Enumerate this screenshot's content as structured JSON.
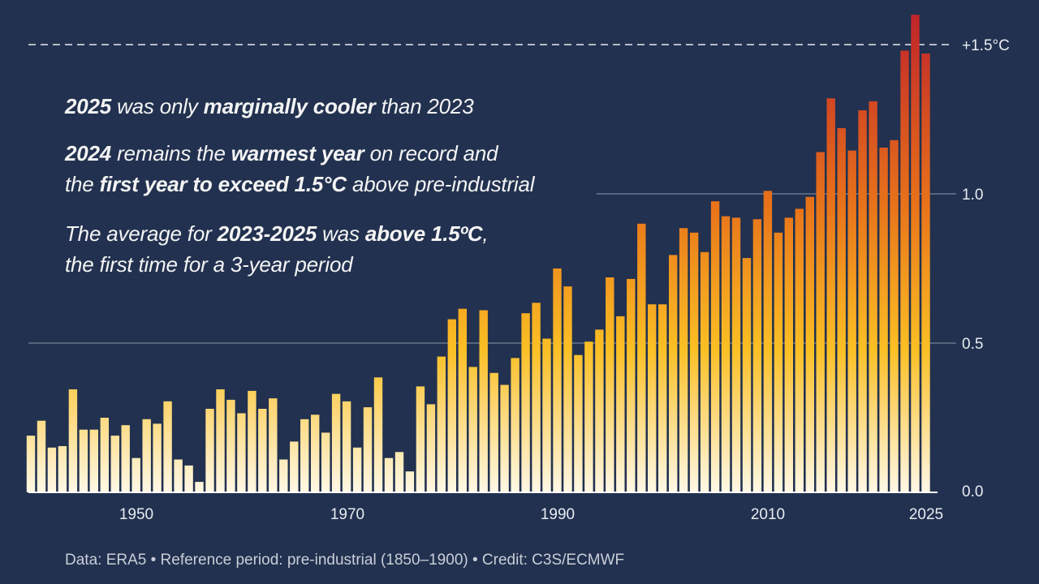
{
  "annotations": {
    "line1": [
      {
        "t": "2025",
        "b": true
      },
      {
        "t": " was only ",
        "b": false
      },
      {
        "t": "marginally cooler",
        "b": true
      },
      {
        "t": " than 2023",
        "b": false
      }
    ],
    "line2": [
      {
        "t": "2024",
        "b": true
      },
      {
        "t": " remains the ",
        "b": false
      },
      {
        "t": "warmest year",
        "b": true
      },
      {
        "t": " on record and",
        "b": false
      }
    ],
    "line3": [
      {
        "t": "the ",
        "b": false
      },
      {
        "t": "first year to exceed 1.5°C",
        "b": true
      },
      {
        "t": " above pre-industrial",
        "b": false
      }
    ],
    "line4": [
      {
        "t": "The average for ",
        "b": false
      },
      {
        "t": "2023-2025",
        "b": true
      },
      {
        "t": " was ",
        "b": false
      },
      {
        "t": "above 1.5ºC",
        "b": true
      },
      {
        "t": ",",
        "b": false
      }
    ],
    "line5": [
      {
        "t": "the first time for a 3-year period",
        "b": false
      }
    ]
  },
  "footer": "Data: ERA5 • Reference period: pre-industrial (1850–1900) • Credit: C3S/ECMWF",
  "chart_data": {
    "type": "bar",
    "title": "",
    "xlabel": "",
    "ylabel": "",
    "ylim": [
      0,
      1.6
    ],
    "grid": true,
    "threshold": {
      "value": 1.5,
      "label": "+1.5°C",
      "style": "dashed"
    },
    "x_ticks": [
      "1950",
      "1970",
      "1990",
      "2010",
      "2025"
    ],
    "y_ticks": [
      "0.0",
      "0.5",
      "1.0"
    ],
    "colors": {
      "low": "#fff8e6",
      "mid": "#fbbf24",
      "high": "#e8731a",
      "peak": "#c0242a",
      "background": "#22314f"
    },
    "years": [
      1940,
      1941,
      1942,
      1943,
      1944,
      1945,
      1946,
      1947,
      1948,
      1949,
      1950,
      1951,
      1952,
      1953,
      1954,
      1955,
      1956,
      1957,
      1958,
      1959,
      1960,
      1961,
      1962,
      1963,
      1964,
      1965,
      1966,
      1967,
      1968,
      1969,
      1970,
      1971,
      1972,
      1973,
      1974,
      1975,
      1976,
      1977,
      1978,
      1979,
      1980,
      1981,
      1982,
      1983,
      1984,
      1985,
      1986,
      1987,
      1988,
      1989,
      1990,
      1991,
      1992,
      1993,
      1994,
      1995,
      1996,
      1997,
      1998,
      1999,
      2000,
      2001,
      2002,
      2003,
      2004,
      2005,
      2006,
      2007,
      2008,
      2009,
      2010,
      2011,
      2012,
      2013,
      2014,
      2015,
      2016,
      2017,
      2018,
      2019,
      2020,
      2021,
      2022,
      2023,
      2024,
      2025
    ],
    "values": [
      0.19,
      0.24,
      0.15,
      0.155,
      0.345,
      0.21,
      0.21,
      0.25,
      0.19,
      0.225,
      0.115,
      0.245,
      0.23,
      0.305,
      0.11,
      0.09,
      0.035,
      0.28,
      0.345,
      0.31,
      0.265,
      0.34,
      0.28,
      0.315,
      0.11,
      0.17,
      0.245,
      0.26,
      0.2,
      0.33,
      0.305,
      0.15,
      0.285,
      0.385,
      0.115,
      0.135,
      0.07,
      0.355,
      0.295,
      0.455,
      0.58,
      0.615,
      0.42,
      0.61,
      0.4,
      0.36,
      0.45,
      0.6,
      0.635,
      0.515,
      0.75,
      0.69,
      0.46,
      0.505,
      0.545,
      0.72,
      0.59,
      0.715,
      0.9,
      0.63,
      0.63,
      0.795,
      0.885,
      0.87,
      0.805,
      0.975,
      0.925,
      0.92,
      0.785,
      0.915,
      1.01,
      0.87,
      0.92,
      0.95,
      0.99,
      1.14,
      1.32,
      1.22,
      1.145,
      1.28,
      1.31,
      1.155,
      1.18,
      1.48,
      1.6,
      1.47
    ]
  }
}
